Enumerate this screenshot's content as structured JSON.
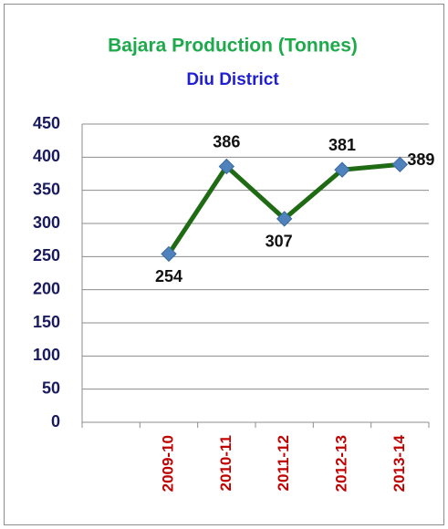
{
  "chart_data": {
    "type": "line",
    "title": "Bajara Production (Tonnes)",
    "subtitle": "Diu District",
    "categories": [
      null,
      "2009-10",
      "2010-11",
      "2011-12",
      "2012-13",
      "2013-14"
    ],
    "values": [
      null,
      254,
      386,
      307,
      381,
      389
    ],
    "color": "#1e6b14",
    "marker_color": "#4f81bd",
    "ylim": [
      0,
      450
    ],
    "yticks": [
      0,
      50,
      100,
      150,
      200,
      250,
      300,
      350,
      400,
      450
    ],
    "grid": true
  }
}
